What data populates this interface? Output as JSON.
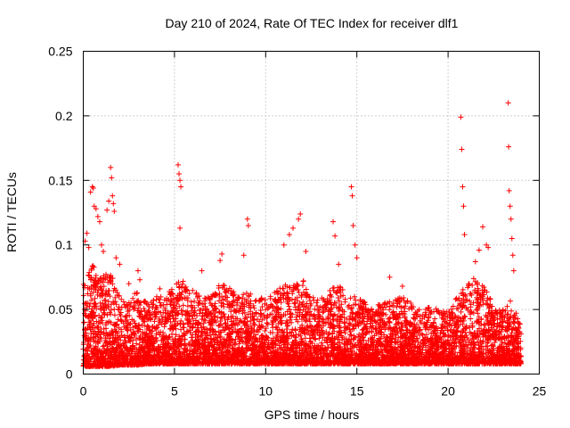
{
  "chart_data": {
    "type": "scatter",
    "title": "Day 210 of 2024, Rate Of TEC Index for receiver dlf1",
    "xlabel": "GPS time / hours",
    "ylabel": "ROTI / TECUs",
    "xlim": [
      0,
      25
    ],
    "ylim": [
      0,
      0.25
    ],
    "xticks": [
      0,
      5,
      10,
      15,
      20,
      25
    ],
    "xtick_labels": [
      "0",
      "5",
      "10",
      "15",
      "20",
      "25"
    ],
    "yticks": [
      0,
      0.05,
      0.1,
      0.15,
      0.2,
      0.25
    ],
    "ytick_labels": [
      "0",
      "0.05",
      "0.1",
      "0.15",
      "0.2",
      "0.25"
    ],
    "grid": true,
    "marker": "+",
    "color": "#ff0000",
    "series": [
      {
        "name": "ROTI",
        "points": [
          [
            0.1,
            0.103
          ],
          [
            0.2,
            0.109
          ],
          [
            0.3,
            0.098
          ],
          [
            0.4,
            0.141
          ],
          [
            0.5,
            0.145
          ],
          [
            0.55,
            0.144
          ],
          [
            0.6,
            0.13
          ],
          [
            0.7,
            0.128
          ],
          [
            0.8,
            0.122
          ],
          [
            0.9,
            0.118
          ],
          [
            1.0,
            0.1
          ],
          [
            1.1,
            0.095
          ],
          [
            1.3,
            0.127
          ],
          [
            1.4,
            0.134
          ],
          [
            1.5,
            0.16
          ],
          [
            1.55,
            0.152
          ],
          [
            1.6,
            0.138
          ],
          [
            1.65,
            0.132
          ],
          [
            1.7,
            0.126
          ],
          [
            1.8,
            0.09
          ],
          [
            2.0,
            0.085
          ],
          [
            2.5,
            0.07
          ],
          [
            3.0,
            0.08
          ],
          [
            3.1,
            0.073
          ],
          [
            4.2,
            0.066
          ],
          [
            5.2,
            0.162
          ],
          [
            5.25,
            0.155
          ],
          [
            5.3,
            0.15
          ],
          [
            5.35,
            0.145
          ],
          [
            5.3,
            0.113
          ],
          [
            6.5,
            0.08
          ],
          [
            7.5,
            0.088
          ],
          [
            7.6,
            0.093
          ],
          [
            8.8,
            0.092
          ],
          [
            9.0,
            0.12
          ],
          [
            9.05,
            0.115
          ],
          [
            11.0,
            0.1
          ],
          [
            11.3,
            0.108
          ],
          [
            11.5,
            0.113
          ],
          [
            11.8,
            0.12
          ],
          [
            11.9,
            0.124
          ],
          [
            12.2,
            0.095
          ],
          [
            13.7,
            0.118
          ],
          [
            13.8,
            0.107
          ],
          [
            14.0,
            0.085
          ],
          [
            14.7,
            0.145
          ],
          [
            14.75,
            0.138
          ],
          [
            14.8,
            0.115
          ],
          [
            14.9,
            0.1
          ],
          [
            15.0,
            0.09
          ],
          [
            16.8,
            0.075
          ],
          [
            17.5,
            0.068
          ],
          [
            20.7,
            0.199
          ],
          [
            20.75,
            0.174
          ],
          [
            20.8,
            0.145
          ],
          [
            20.85,
            0.13
          ],
          [
            20.9,
            0.108
          ],
          [
            21.5,
            0.087
          ],
          [
            21.7,
            0.096
          ],
          [
            21.9,
            0.114
          ],
          [
            22.1,
            0.1
          ],
          [
            22.2,
            0.098
          ],
          [
            23.3,
            0.21
          ],
          [
            23.32,
            0.176
          ],
          [
            23.35,
            0.142
          ],
          [
            23.4,
            0.13
          ],
          [
            23.45,
            0.12
          ],
          [
            23.5,
            0.105
          ],
          [
            23.55,
            0.092
          ],
          [
            23.6,
            0.08
          ]
        ]
      }
    ],
    "density_envelope": {
      "x": [
        0,
        0.5,
        1.0,
        1.5,
        2.0,
        2.5,
        3.0,
        3.5,
        4.0,
        4.5,
        5.0,
        5.5,
        6.0,
        6.5,
        7.0,
        7.5,
        8.0,
        8.5,
        9.0,
        9.5,
        10.0,
        10.5,
        11.0,
        11.5,
        12.0,
        12.5,
        13.0,
        13.5,
        14.0,
        14.5,
        15.0,
        15.5,
        16.0,
        16.5,
        17.0,
        17.5,
        18.0,
        18.5,
        19.0,
        19.5,
        20.0,
        20.5,
        21.0,
        21.5,
        22.0,
        22.5,
        23.0,
        23.5,
        24.0
      ],
      "low": [
        0.006,
        0.006,
        0.006,
        0.006,
        0.007,
        0.007,
        0.007,
        0.008,
        0.008,
        0.008,
        0.008,
        0.008,
        0.008,
        0.008,
        0.008,
        0.008,
        0.008,
        0.008,
        0.008,
        0.008,
        0.008,
        0.008,
        0.008,
        0.008,
        0.008,
        0.008,
        0.008,
        0.008,
        0.008,
        0.008,
        0.008,
        0.008,
        0.008,
        0.008,
        0.008,
        0.008,
        0.008,
        0.008,
        0.008,
        0.008,
        0.008,
        0.008,
        0.008,
        0.008,
        0.008,
        0.008,
        0.008,
        0.008,
        0.008
      ],
      "high": [
        0.07,
        0.085,
        0.075,
        0.08,
        0.06,
        0.058,
        0.065,
        0.055,
        0.06,
        0.06,
        0.07,
        0.075,
        0.065,
        0.06,
        0.062,
        0.07,
        0.07,
        0.06,
        0.065,
        0.058,
        0.06,
        0.065,
        0.07,
        0.068,
        0.075,
        0.06,
        0.058,
        0.065,
        0.07,
        0.06,
        0.06,
        0.055,
        0.055,
        0.055,
        0.058,
        0.06,
        0.055,
        0.05,
        0.052,
        0.05,
        0.048,
        0.06,
        0.072,
        0.075,
        0.07,
        0.052,
        0.05,
        0.058,
        0.038
      ],
      "count_per_half_hour": 140
    }
  }
}
